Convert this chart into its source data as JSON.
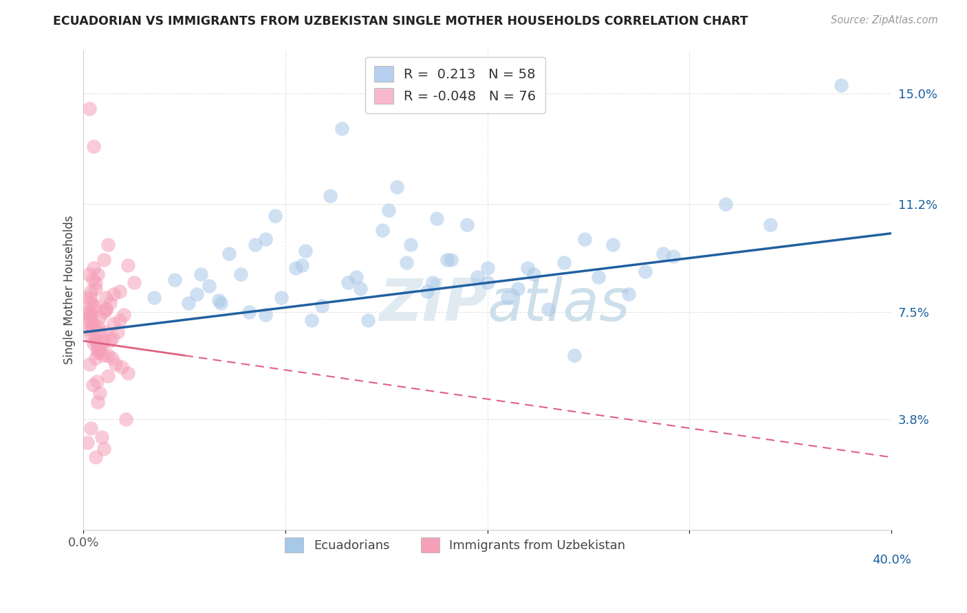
{
  "title": "ECUADORIAN VS IMMIGRANTS FROM UZBEKISTAN SINGLE MOTHER HOUSEHOLDS CORRELATION CHART",
  "source": "Source: ZipAtlas.com",
  "ylabel": "Single Mother Households",
  "xlim": [
    0.0,
    40.0
  ],
  "ylim": [
    0.0,
    16.5
  ],
  "yticks": [
    3.8,
    7.5,
    11.2,
    15.0
  ],
  "xticks": [
    0.0,
    10.0,
    20.0,
    30.0,
    40.0
  ],
  "xtick_labels": [
    "0.0%",
    "",
    "",
    "",
    ""
  ],
  "ytick_labels": [
    "3.8%",
    "7.5%",
    "11.2%",
    "15.0%"
  ],
  "blue_color": "#a8c8e8",
  "pink_color": "#f5a0b8",
  "blue_line_color": "#2060a0",
  "pink_line_color": "#e06080",
  "background_color": "#ffffff",
  "grid_color": "#d8d8d8",
  "watermark": "ZIPatlas",
  "legend_line1": "R =  0.213   N = 58",
  "legend_line2": "R = -0.048   N = 76",
  "legend_color1": "#b8d0f0",
  "legend_color2": "#f8b8cc",
  "blue_line_x0": 0.0,
  "blue_line_y0": 6.8,
  "blue_line_x1": 40.0,
  "blue_line_y1": 10.2,
  "pink_solid_x0": 0.0,
  "pink_solid_y0": 6.5,
  "pink_solid_x1": 5.0,
  "pink_solid_y1": 6.0,
  "pink_dash_x0": 5.0,
  "pink_dash_y0": 6.0,
  "pink_dash_x1": 40.0,
  "pink_dash_y1": 2.5,
  "blue_scatter_x": [
    3.5,
    7.2,
    12.8,
    9.5,
    17.3,
    14.1,
    5.8,
    9.0,
    11.3,
    6.8,
    13.7,
    19.0,
    21.0,
    23.8,
    16.2,
    10.5,
    8.2,
    15.1,
    22.3,
    18.2,
    5.2,
    25.5,
    28.7,
    12.2,
    20.0,
    27.0,
    6.2,
    8.5,
    14.8,
    17.0,
    23.0,
    11.0,
    6.7,
    19.5,
    24.8,
    13.1,
    9.8,
    21.5,
    16.0,
    11.8,
    7.8,
    29.2,
    34.0,
    4.5,
    15.5,
    27.8,
    18.0,
    22.0,
    5.6,
    31.8,
    37.5,
    13.5,
    26.2,
    9.0,
    20.0,
    17.5,
    10.8,
    24.3
  ],
  "blue_scatter_y": [
    8.0,
    9.5,
    13.8,
    10.8,
    8.5,
    7.2,
    8.8,
    10.0,
    7.2,
    7.8,
    8.3,
    10.5,
    8.0,
    9.2,
    9.8,
    9.0,
    7.5,
    11.0,
    8.8,
    9.3,
    7.8,
    8.7,
    9.5,
    11.5,
    9.0,
    8.1,
    8.4,
    9.8,
    10.3,
    8.2,
    7.6,
    9.6,
    7.9,
    8.7,
    10.0,
    8.5,
    8.0,
    8.3,
    9.2,
    7.7,
    8.8,
    9.4,
    10.5,
    8.6,
    11.8,
    8.9,
    9.3,
    9.0,
    8.1,
    11.2,
    15.3,
    8.7,
    9.8,
    7.4,
    8.5,
    10.7,
    9.1,
    6.0
  ],
  "pink_scatter_x": [
    0.2,
    0.4,
    0.7,
    1.0,
    0.3,
    0.5,
    1.3,
    1.8,
    0.8,
    1.5,
    0.15,
    0.6,
    1.0,
    0.35,
    2.2,
    1.1,
    0.5,
    1.7,
    0.25,
    0.7,
    1.2,
    0.4,
    2.0,
    0.8,
    1.4,
    0.35,
    0.6,
    1.0,
    0.25,
    1.5,
    0.5,
    2.5,
    0.45,
    0.7,
    1.1,
    0.35,
    0.8,
    1.3,
    0.25,
    0.6,
    1.1,
    0.5,
    1.8,
    0.35,
    1.6,
    0.7,
    1.0,
    0.45,
    0.8,
    2.2,
    0.25,
    0.55,
    1.2,
    0.6,
    0.9,
    0.35,
    0.7,
    1.1,
    0.45,
    1.9,
    0.25,
    0.6,
    1.4,
    0.35,
    0.8,
    1.2,
    0.45,
    0.7,
    0.9,
    2.1,
    0.3,
    0.65,
    0.35,
    0.6,
    1.0,
    0.2
  ],
  "pink_scatter_y": [
    7.5,
    7.0,
    8.8,
    9.3,
    14.5,
    13.2,
    7.8,
    7.2,
    6.8,
    7.1,
    8.0,
    8.5,
    6.5,
    7.3,
    9.1,
    7.6,
    9.0,
    6.8,
    7.5,
    6.3,
    9.8,
    7.0,
    7.4,
    6.1,
    6.6,
    7.8,
    8.3,
    6.0,
    6.9,
    8.1,
    6.4,
    8.5,
    7.7,
    6.2,
    8.0,
    6.7,
    7.3,
    6.5,
    8.8,
    5.9,
    7.6,
    7.1,
    8.2,
    7.4,
    5.7,
    7.0,
    7.5,
    8.6,
    6.3,
    5.4,
    7.2,
    6.6,
    6.0,
    7.7,
    6.4,
    8.0,
    6.1,
    6.8,
    5.0,
    5.6,
    7.3,
    6.5,
    5.9,
    8.2,
    4.7,
    5.3,
    7.0,
    4.4,
    3.2,
    3.8,
    5.7,
    5.1,
    3.5,
    2.5,
    2.8,
    3.0
  ]
}
